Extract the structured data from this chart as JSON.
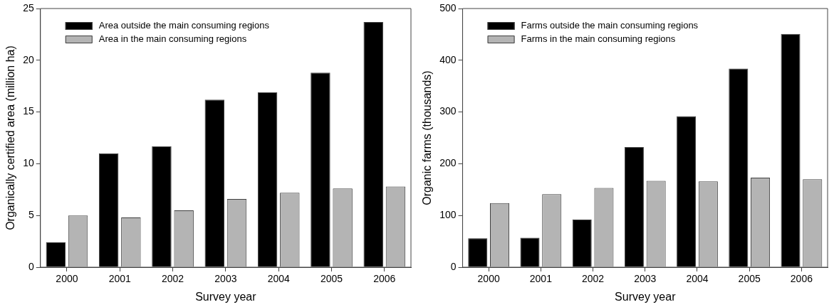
{
  "chart_data": [
    {
      "type": "bar",
      "xlabel": "Survey year",
      "ylabel": "Organically certified area (million ha)",
      "categories": [
        "2000",
        "2001",
        "2002",
        "2003",
        "2004",
        "2005",
        "2006"
      ],
      "series": [
        {
          "name": "Area outside the main consuming regions",
          "color": "#000000",
          "values": [
            2.4,
            11.0,
            11.7,
            16.2,
            16.9,
            18.8,
            23.7
          ]
        },
        {
          "name": "Area in the main consuming regions",
          "color": "#b4b4b4",
          "values": [
            5.0,
            4.8,
            5.5,
            6.6,
            7.2,
            7.6,
            7.8
          ]
        }
      ],
      "ylim": [
        0,
        25
      ],
      "yticks": [
        0,
        5,
        10,
        15,
        20,
        25
      ],
      "grid": false,
      "legend": "top left"
    },
    {
      "type": "bar",
      "xlabel": "Survey year",
      "ylabel": "Organic farms (thousands)",
      "categories": [
        "2000",
        "2001",
        "2002",
        "2003",
        "2004",
        "2005",
        "2006"
      ],
      "series": [
        {
          "name": "Farms outside the main consuming regions",
          "color": "#000000",
          "values": [
            56,
            57,
            92,
            232,
            292,
            384,
            451
          ]
        },
        {
          "name": "Farms in the main consuming regions",
          "color": "#b4b4b4",
          "values": [
            124,
            141,
            153,
            167,
            166,
            173,
            170
          ]
        }
      ],
      "ylim": [
        0,
        500
      ],
      "yticks": [
        0,
        100,
        200,
        300,
        400,
        500
      ],
      "grid": false,
      "legend": "top left"
    }
  ]
}
